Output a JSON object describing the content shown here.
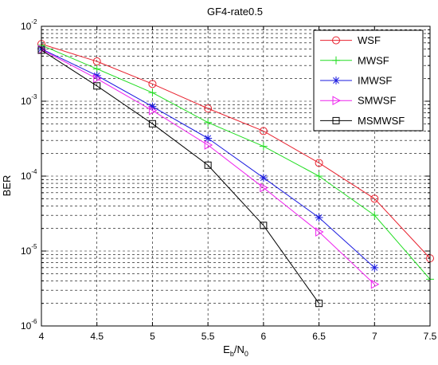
{
  "chart_data": {
    "type": "line",
    "title": "GF4-rate0.5",
    "xlabel": {
      "base": "E",
      "sub1": "b",
      "mid": "/N",
      "sub2": "0"
    },
    "ylabel": "BER",
    "xlim": [
      4,
      7.5
    ],
    "ylim": [
      1e-06,
      0.01
    ],
    "yscale": "log",
    "grid": true,
    "grid_style": "dashed",
    "legend_position": "top-right",
    "x_ticks": [
      4,
      4.5,
      5,
      5.5,
      6,
      6.5,
      7,
      7.5
    ],
    "x_tick_labels": [
      "4",
      "4.5",
      "5",
      "5.5",
      "6",
      "6.5",
      "7",
      "7.5"
    ],
    "y_ticks": [
      {
        "base": "10",
        "exp": "-6",
        "value": 1e-06
      },
      {
        "base": "10",
        "exp": "-5",
        "value": 1e-05
      },
      {
        "base": "10",
        "exp": "-4",
        "value": 0.0001
      },
      {
        "base": "10",
        "exp": "-3",
        "value": 0.001
      },
      {
        "base": "10",
        "exp": "-2",
        "value": 0.01
      }
    ],
    "series": [
      {
        "name": "WSF",
        "color": "#e8212e",
        "marker": "circle",
        "x": [
          4,
          4.5,
          5,
          5.5,
          6,
          6.5,
          7,
          7.5
        ],
        "y": [
          0.0058,
          0.0034,
          0.0017,
          0.0008,
          0.0004,
          0.00015,
          5e-05,
          8e-06
        ]
      },
      {
        "name": "MWSF",
        "color": "#22dd22",
        "marker": "plus",
        "x": [
          4,
          4.5,
          5,
          5.5,
          6,
          6.5,
          7,
          7.5
        ],
        "y": [
          0.0056,
          0.0027,
          0.0013,
          0.00052,
          0.00025,
          0.0001,
          3e-05,
          4.2e-06
        ]
      },
      {
        "name": "IMWSF",
        "color": "#1a1adf",
        "marker": "asterisk",
        "x": [
          4,
          4.5,
          5,
          5.5,
          6,
          6.5,
          7
        ],
        "y": [
          0.005,
          0.0022,
          0.00085,
          0.00032,
          9.5e-05,
          2.8e-05,
          6e-06
        ]
      },
      {
        "name": "SMWSF",
        "color": "#ee22ee",
        "marker": "triangle-right",
        "x": [
          4,
          4.5,
          5,
          5.5,
          6,
          6.5,
          7
        ],
        "y": [
          0.0049,
          0.002,
          0.00075,
          0.00026,
          7e-05,
          1.8e-05,
          3.6e-06
        ]
      },
      {
        "name": "MSMWSF",
        "color": "#000000",
        "marker": "square",
        "x": [
          4,
          4.5,
          5,
          5.5,
          6,
          6.5
        ],
        "y": [
          0.0048,
          0.0016,
          0.0005,
          0.00014,
          2.2e-05,
          2e-06
        ]
      }
    ]
  }
}
